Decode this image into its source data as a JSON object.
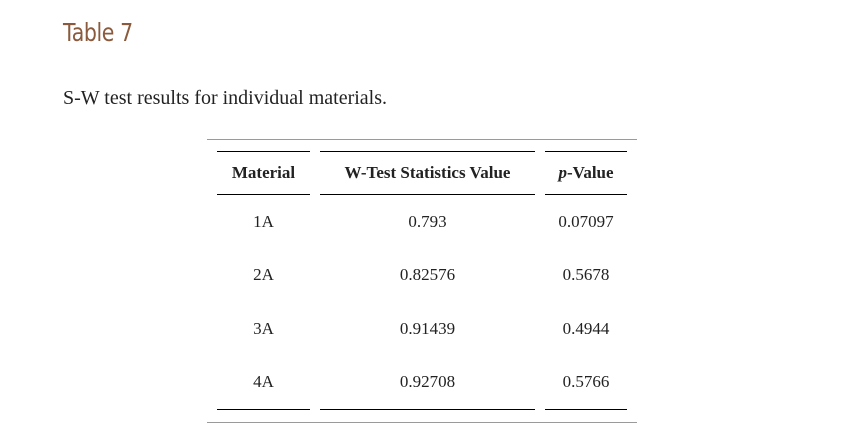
{
  "table_label": "Table 7",
  "caption": "S-W test results for individual materials.",
  "table": {
    "headers": {
      "material": "Material",
      "w_stat": "W-Test Statistics Value",
      "p_value_italic": "p",
      "p_value_rest": "-Value"
    },
    "rows": [
      {
        "material": "1A",
        "w_stat": "0.793",
        "p_value": "0.07097"
      },
      {
        "material": "2A",
        "w_stat": "0.82576",
        "p_value": "0.5678"
      },
      {
        "material": "3A",
        "w_stat": "0.91439",
        "p_value": "0.4944"
      },
      {
        "material": "4A",
        "w_stat": "0.92708",
        "p_value": "0.5766"
      }
    ]
  }
}
